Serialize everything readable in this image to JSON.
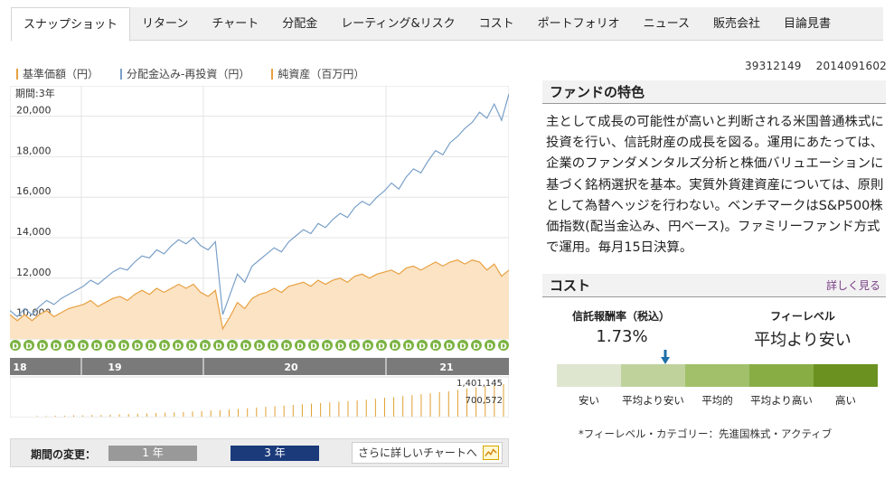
{
  "tabs": [
    {
      "label": "スナップショット",
      "active": true
    },
    {
      "label": "リターン"
    },
    {
      "label": "チャート"
    },
    {
      "label": "分配金"
    },
    {
      "label": "レーティング&リスク"
    },
    {
      "label": "コスト"
    },
    {
      "label": "ポートフォリオ"
    },
    {
      "label": "ニュース"
    },
    {
      "label": "販売会社"
    },
    {
      "label": "目論見書"
    }
  ],
  "codes": {
    "fund_code": "39312149",
    "date_code": "2014091602"
  },
  "legend": [
    {
      "label": "基準価額（円）",
      "color": "#e8a040"
    },
    {
      "label": "分配金込み-再投資（円）",
      "color": "#7aa0c8"
    },
    {
      "label": "純資産（百万円）",
      "color": "#e8a040"
    }
  ],
  "chart_data": {
    "type": "line",
    "period_label": "期間:3年",
    "y_ticks": [
      "20,000",
      "18,000",
      "16,000",
      "14,000",
      "12,000",
      "10,000"
    ],
    "ylim": [
      9000,
      21500
    ],
    "x_labels": [
      "18",
      "19",
      "20",
      "21"
    ],
    "dividend_marker": "D",
    "volume_labels": [
      "1,401,145",
      "700,572"
    ],
    "series": [
      {
        "name": "分配金込み-再投資（円）",
        "color": "#7aa0c8",
        "values": [
          10400,
          10100,
          10500,
          10200,
          10600,
          10900,
          10700,
          11000,
          11200,
          11400,
          11600,
          11900,
          11700,
          12000,
          12300,
          12500,
          12400,
          12800,
          13100,
          13000,
          13400,
          13200,
          13600,
          13900,
          13700,
          14000,
          13600,
          13400,
          13800,
          10200,
          11200,
          12200,
          11800,
          12600,
          12900,
          13200,
          13500,
          13300,
          13800,
          14100,
          14400,
          14200,
          14700,
          14500,
          14900,
          15200,
          15000,
          15500,
          15800,
          15600,
          16000,
          16300,
          16700,
          16400,
          17000,
          17400,
          17200,
          17800,
          18300,
          18100,
          18700,
          19000,
          19400,
          19700,
          20200,
          19900,
          20600,
          19800,
          21100
        ]
      },
      {
        "name": "基準価額（円）",
        "color": "#e8a040",
        "values": [
          10200,
          9900,
          10200,
          9900,
          10200,
          10400,
          10100,
          10300,
          10500,
          10600,
          10700,
          10900,
          10600,
          10800,
          11000,
          11100,
          10900,
          11200,
          11400,
          11200,
          11500,
          11300,
          11500,
          11700,
          11500,
          11700,
          11300,
          11100,
          11400,
          9500,
          10100,
          10800,
          10500,
          11000,
          11200,
          11300,
          11500,
          11300,
          11600,
          11700,
          11800,
          11600,
          11900,
          11700,
          11900,
          12000,
          11800,
          12100,
          12200,
          12000,
          12200,
          12300,
          12400,
          12200,
          12500,
          12600,
          12400,
          12600,
          12800,
          12600,
          12800,
          12900,
          12700,
          12900,
          12800,
          12400,
          12700,
          12100,
          12400
        ]
      }
    ],
    "volume": [
      0.02,
      0.02,
      0.03,
      0.03,
      0.04,
      0.04,
      0.05,
      0.05,
      0.06,
      0.07,
      0.08,
      0.09,
      0.1,
      0.11,
      0.12,
      0.13,
      0.14,
      0.16,
      0.17,
      0.19,
      0.2,
      0.22,
      0.24,
      0.26,
      0.28,
      0.3,
      0.32,
      0.34,
      0.36,
      0.38,
      0.4,
      0.42,
      0.44,
      0.46,
      0.48,
      0.5,
      0.52,
      0.55,
      0.58,
      0.6,
      0.63,
      0.66,
      0.69,
      0.72,
      0.75,
      0.78,
      0.82,
      0.86,
      0.9,
      0.94,
      0.97,
      1.0
    ]
  },
  "feature": {
    "title": "ファンドの特色",
    "text": "主として成長の可能性が高いと判断される米国普通株式に投資を行い、信託財産の成長を図る。運用にあたっては、企業のファンダメンタルズ分析と株価バリュエーションに基づく銘柄選択を基本。実質外貨建資産については、原則として為替ヘッジを行わない。ベンチマークはS&P500株価指数(配当金込み、円ベース)。ファミリーファンド方式で運用。毎月15日決算。"
  },
  "cost": {
    "title": "コスト",
    "more_link": "詳しく見る",
    "fee_label": "信託報酬率（税込）",
    "fee_value": "1.73%",
    "level_label": "フィーレベル",
    "level_value": "平均より安い",
    "levels": [
      {
        "label": "安い",
        "color": "#dfe6d0"
      },
      {
        "label": "平均より安い",
        "color": "#c0d29c"
      },
      {
        "label": "平均的",
        "color": "#a2c06a"
      },
      {
        "label": "平均より高い",
        "color": "#88ad45"
      },
      {
        "label": "高い",
        "color": "#6b9120"
      }
    ],
    "note": "*フィーレベル・カテゴリー：先進国株式・アクティブ"
  },
  "period": {
    "label": "期間の変更：",
    "btn_1y": "1 年",
    "btn_3y": "3 年",
    "detail_link": "さらに詳しいチャートへ"
  }
}
